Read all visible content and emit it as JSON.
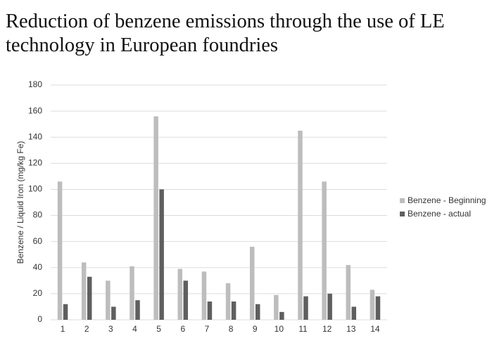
{
  "chart_data": {
    "type": "bar",
    "title": "Reduction of benzene emissions through the use of LE technology in European foundries",
    "y_label": "Benzene  / Liquid Iron (mg/kg Fe)",
    "categories": [
      "1",
      "2",
      "3",
      "4",
      "5",
      "6",
      "7",
      "8",
      "9",
      "10",
      "11",
      "12",
      "13",
      "14"
    ],
    "series": [
      {
        "name": "Benzene - Beginning",
        "color": "#bdbdbd",
        "values": [
          106,
          44,
          30,
          41,
          156,
          39,
          37,
          28,
          56,
          19,
          145,
          106,
          42,
          23
        ]
      },
      {
        "name": "Benzene - actual",
        "color": "#5f5f5f",
        "values": [
          12,
          33,
          10,
          15,
          100,
          30,
          14,
          14,
          12,
          6,
          18,
          20,
          10,
          18
        ]
      }
    ],
    "ylim": [
      0,
      180
    ],
    "yticks": [
      0,
      20,
      40,
      60,
      80,
      100,
      120,
      140,
      160,
      180
    ],
    "grid": true,
    "legend": "right"
  }
}
